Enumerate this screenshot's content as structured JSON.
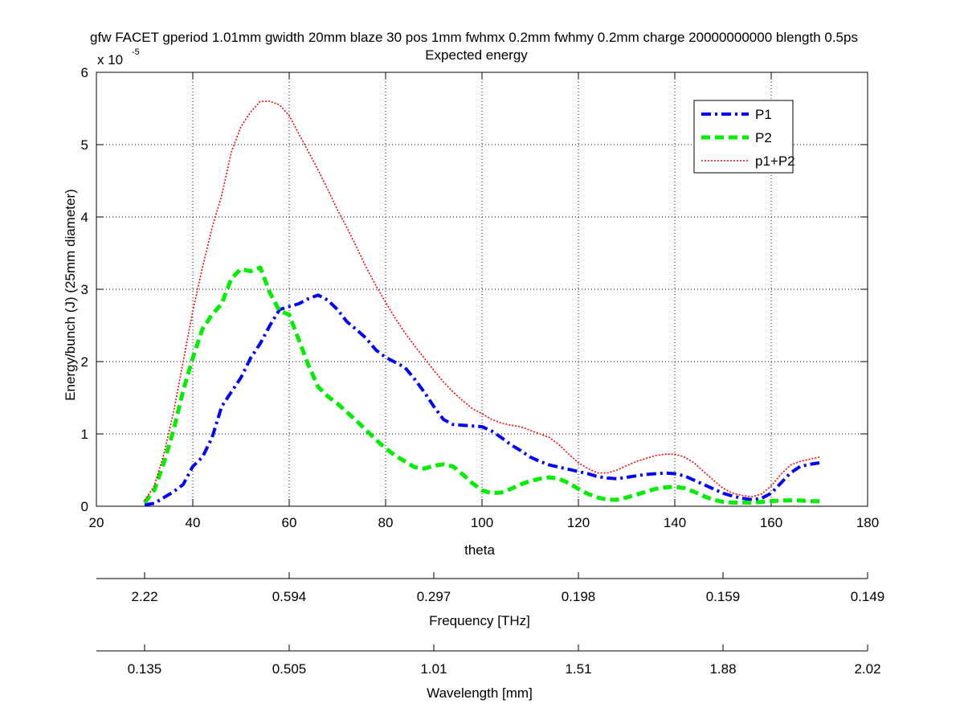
{
  "chart_data": {
    "type": "line",
    "title": "gfw FACET gperiod 1.01mm gwidth 20mm blaze 30 pos 1mm fwhmx 0.2mm fwhmy 0.2mm charge 20000000000 blength 0.5ps",
    "subtitle": "Expected energy",
    "xlabel": "theta",
    "ylabel": "Energy/bunch (J) (25mm diameter)",
    "y_exponent_base": "x 10",
    "y_exponent_power": "-5",
    "xlim": [
      20,
      180
    ],
    "ylim": [
      0,
      6
    ],
    "x_ticks": [
      "20",
      "40",
      "60",
      "80",
      "100",
      "120",
      "140",
      "160",
      "180"
    ],
    "y_ticks": [
      "0",
      "1",
      "2",
      "3",
      "4",
      "5",
      "6"
    ],
    "grid": true,
    "legend_position": "top-right",
    "series": [
      {
        "name": "P1",
        "color": "#0000ff",
        "x": [
          30,
          32,
          34,
          36,
          38,
          40,
          42,
          44,
          46,
          48,
          50,
          52,
          54,
          56,
          58,
          60,
          62,
          64,
          66,
          68,
          70,
          72,
          74,
          76,
          78,
          80,
          82,
          84,
          86,
          88,
          90,
          92,
          94,
          96,
          98,
          100,
          102,
          104,
          106,
          108,
          110,
          112,
          114,
          116,
          118,
          120,
          122,
          124,
          126,
          128,
          130,
          132,
          134,
          136,
          138,
          140,
          142,
          144,
          146,
          148,
          150,
          152,
          154,
          156,
          158,
          160,
          162,
          164,
          166,
          168,
          170
        ],
        "y": [
          0.02,
          0.04,
          0.12,
          0.2,
          0.3,
          0.55,
          0.68,
          0.95,
          1.38,
          1.58,
          1.78,
          2.05,
          2.25,
          2.5,
          2.72,
          2.76,
          2.8,
          2.87,
          2.92,
          2.85,
          2.72,
          2.55,
          2.44,
          2.32,
          2.16,
          2.06,
          1.99,
          1.92,
          1.76,
          1.58,
          1.38,
          1.2,
          1.13,
          1.12,
          1.11,
          1.1,
          1.04,
          0.95,
          0.85,
          0.77,
          0.68,
          0.62,
          0.57,
          0.54,
          0.51,
          0.48,
          0.45,
          0.41,
          0.39,
          0.38,
          0.4,
          0.42,
          0.44,
          0.45,
          0.46,
          0.45,
          0.42,
          0.36,
          0.3,
          0.24,
          0.18,
          0.14,
          0.11,
          0.09,
          0.11,
          0.18,
          0.32,
          0.46,
          0.55,
          0.58,
          0.6
        ]
      },
      {
        "name": "P2",
        "color": "#00ee00",
        "x": [
          30,
          32,
          34,
          36,
          38,
          40,
          42,
          44,
          46,
          48,
          50,
          52,
          54,
          56,
          58,
          60,
          62,
          64,
          66,
          68,
          70,
          72,
          74,
          76,
          78,
          80,
          82,
          84,
          86,
          88,
          90,
          92,
          94,
          96,
          98,
          100,
          102,
          104,
          106,
          108,
          110,
          112,
          114,
          116,
          118,
          120,
          122,
          124,
          126,
          128,
          130,
          132,
          134,
          136,
          138,
          140,
          142,
          144,
          146,
          148,
          150,
          152,
          154,
          156,
          158,
          160,
          162,
          164,
          166,
          168,
          170
        ],
        "y": [
          0.05,
          0.22,
          0.6,
          1.05,
          1.6,
          2.05,
          2.45,
          2.65,
          2.8,
          3.15,
          3.28,
          3.25,
          3.3,
          2.95,
          2.7,
          2.65,
          2.3,
          1.95,
          1.65,
          1.52,
          1.42,
          1.3,
          1.18,
          1.05,
          0.92,
          0.8,
          0.7,
          0.62,
          0.54,
          0.52,
          0.56,
          0.58,
          0.55,
          0.44,
          0.32,
          0.22,
          0.18,
          0.19,
          0.24,
          0.3,
          0.35,
          0.38,
          0.4,
          0.38,
          0.32,
          0.24,
          0.17,
          0.12,
          0.09,
          0.09,
          0.12,
          0.16,
          0.2,
          0.24,
          0.26,
          0.27,
          0.25,
          0.2,
          0.14,
          0.09,
          0.06,
          0.05,
          0.05,
          0.05,
          0.06,
          0.07,
          0.08,
          0.08,
          0.08,
          0.07,
          0.07
        ]
      },
      {
        "name": "p1+P2",
        "color": "#ff0000",
        "x": [
          30,
          32,
          34,
          36,
          38,
          40,
          42,
          44,
          46,
          48,
          50,
          52,
          54,
          56,
          58,
          60,
          62,
          64,
          66,
          68,
          70,
          72,
          74,
          76,
          78,
          80,
          82,
          84,
          86,
          88,
          90,
          92,
          94,
          96,
          98,
          100,
          102,
          104,
          106,
          108,
          110,
          112,
          114,
          116,
          118,
          120,
          122,
          124,
          126,
          128,
          130,
          132,
          134,
          136,
          138,
          140,
          142,
          144,
          146,
          148,
          150,
          152,
          154,
          156,
          158,
          160,
          162,
          164,
          166,
          168,
          170
        ],
        "y": [
          0.08,
          0.28,
          0.72,
          1.3,
          2.0,
          2.7,
          3.3,
          3.85,
          4.3,
          4.9,
          5.25,
          5.45,
          5.6,
          5.6,
          5.55,
          5.4,
          5.15,
          4.9,
          4.65,
          4.38,
          4.1,
          3.85,
          3.58,
          3.3,
          3.05,
          2.82,
          2.6,
          2.4,
          2.22,
          2.05,
          1.88,
          1.72,
          1.58,
          1.46,
          1.35,
          1.28,
          1.2,
          1.15,
          1.12,
          1.1,
          1.05,
          1.0,
          0.95,
          0.85,
          0.72,
          0.6,
          0.52,
          0.46,
          0.46,
          0.5,
          0.56,
          0.62,
          0.66,
          0.7,
          0.72,
          0.72,
          0.68,
          0.6,
          0.48,
          0.36,
          0.25,
          0.18,
          0.15,
          0.13,
          0.17,
          0.28,
          0.44,
          0.57,
          0.62,
          0.65,
          0.68
        ]
      }
    ],
    "secondary_axes": [
      {
        "label": "Frequency [THz]",
        "tick_positions_theta": [
          30,
          60,
          90,
          120,
          150,
          180
        ],
        "tick_labels": [
          "2.22",
          "0.594",
          "0.297",
          "0.198",
          "0.159",
          "0.149"
        ]
      },
      {
        "label": "Wavelength [mm]",
        "tick_positions_theta": [
          30,
          60,
          90,
          120,
          150,
          180
        ],
        "tick_labels": [
          "0.135",
          "0.505",
          "1.01",
          "1.51",
          "1.88",
          "2.02"
        ]
      }
    ]
  }
}
